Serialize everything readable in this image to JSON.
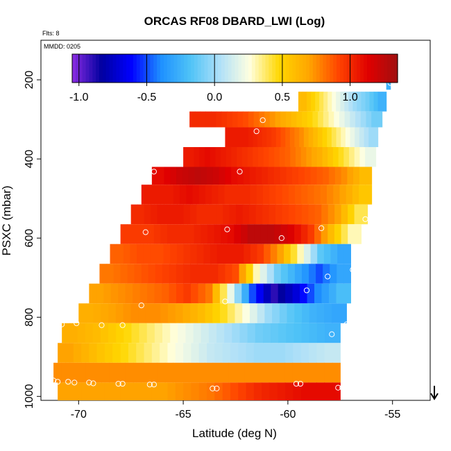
{
  "chart_data": {
    "type": "heatmap",
    "title": "ORCAS RF08 DBARD_LWI (Log)",
    "flts_label": "Flts: 8",
    "mmdd_label": "MMDD: 0205",
    "xlabel": "Latitude (deg N)",
    "ylabel": "PSXC (mbar)",
    "xlim": [
      -71.8,
      -53.2
    ],
    "ylim": [
      1010,
      100
    ],
    "x_ticks": [
      -70,
      -65,
      -60,
      -55
    ],
    "x_tick_labels": [
      "-70",
      "-65",
      "-60",
      "-55"
    ],
    "y_ticks": [
      200,
      400,
      600,
      800,
      1000
    ],
    "y_tick_labels": [
      "200",
      "400",
      "600",
      "800",
      "1000"
    ],
    "colorbar": {
      "range": [
        -1.05,
        1.35
      ],
      "ticks": [
        -1.0,
        -0.5,
        0.0,
        0.5,
        1.0
      ],
      "tick_labels": [
        "-1.0",
        "-0.5",
        "0.0",
        "0.5",
        "1.0"
      ],
      "colors": [
        "#8b2be2",
        "#0000a0",
        "#0000ff",
        "#1e90ff",
        "#4fc3f7",
        "#b0e0f8",
        "#ffffe0",
        "#ffd700",
        "#ffa500",
        "#ff4500",
        "#e00000",
        "#a01010"
      ]
    },
    "rows": [
      {
        "p_top": 180,
        "p_bot": 225,
        "x0": -55.3,
        "x1": -55.1,
        "values": [
          -0.25
        ]
      },
      {
        "p_top": 230,
        "p_bot": 280,
        "x0": -59.5,
        "x1": -55.3,
        "values": [
          0.6,
          0.45,
          0.3,
          0.15,
          0.0,
          -0.1,
          -0.25
        ]
      },
      {
        "p_top": 280,
        "p_bot": 320,
        "x0": -64.7,
        "x1": -55.5,
        "values": [
          1.0,
          1.0,
          0.95,
          0.9,
          0.8,
          0.7,
          0.6,
          0.5,
          0.35,
          0.2,
          0.05,
          -0.1
        ]
      },
      {
        "p_top": 320,
        "p_bot": 370,
        "x0": -63.0,
        "x1": -55.7,
        "values": [
          1.05,
          1.05,
          1.0,
          0.95,
          0.85,
          0.75,
          0.6,
          0.45,
          0.3,
          0.15,
          0.0
        ]
      },
      {
        "p_top": 370,
        "p_bot": 420,
        "x0": -65.0,
        "x1": -55.8,
        "values": [
          1.05,
          1.1,
          1.05,
          1.0,
          0.95,
          0.9,
          0.85,
          0.75,
          0.65,
          0.5,
          0.35,
          0.2
        ]
      },
      {
        "p_top": 420,
        "p_bot": 465,
        "x0": -66.5,
        "x1": -56.0,
        "values": [
          1.1,
          1.2,
          1.25,
          1.2,
          1.1,
          1.05,
          1.0,
          0.95,
          0.9,
          0.85,
          0.75,
          0.6
        ]
      },
      {
        "p_top": 465,
        "p_bot": 515,
        "x0": -67.0,
        "x1": -56.0,
        "values": [
          1.05,
          1.05,
          1.1,
          1.05,
          1.0,
          1.0,
          0.95,
          0.9,
          0.85,
          0.8,
          0.7,
          0.55
        ]
      },
      {
        "p_top": 515,
        "p_bot": 565,
        "x0": -67.5,
        "x1": -56.2,
        "values": [
          1.0,
          1.05,
          1.05,
          1.0,
          1.0,
          1.05,
          1.0,
          0.95,
          0.9,
          0.85,
          0.7,
          0.4
        ]
      },
      {
        "p_top": 565,
        "p_bot": 615,
        "x0": -68.0,
        "x1": -56.5,
        "values": [
          0.95,
          0.95,
          1.0,
          1.0,
          1.05,
          1.1,
          1.25,
          1.25,
          1.15,
          0.95,
          0.6,
          0.3
        ]
      },
      {
        "p_top": 615,
        "p_bot": 665,
        "x0": -68.5,
        "x1": -57.0,
        "values": [
          0.85,
          0.9,
          0.9,
          0.95,
          1.0,
          1.05,
          1.05,
          0.95,
          0.7,
          0.3,
          -0.15,
          -0.3
        ]
      },
      {
        "p_top": 665,
        "p_bot": 715,
        "x0": -69.0,
        "x1": -57.0,
        "values": [
          0.8,
          0.85,
          0.9,
          0.95,
          1.0,
          1.0,
          0.9,
          0.3,
          -0.1,
          -0.3,
          -0.5,
          -0.3
        ]
      },
      {
        "p_top": 715,
        "p_bot": 765,
        "x0": -69.5,
        "x1": -57.0,
        "values": [
          0.7,
          0.75,
          0.8,
          0.85,
          0.95,
          0.8,
          0.2,
          -0.5,
          -0.9,
          -0.7,
          -0.4,
          -0.2
        ]
      },
      {
        "p_top": 765,
        "p_bot": 815,
        "x0": -70.0,
        "x1": -57.2,
        "values": [
          0.65,
          0.7,
          0.75,
          0.75,
          0.7,
          0.6,
          0.45,
          0.25,
          0.0,
          -0.15,
          -0.25,
          -0.3
        ]
      },
      {
        "p_top": 815,
        "p_bot": 865,
        "x0": -70.8,
        "x1": -57.5,
        "values": [
          0.65,
          0.6,
          0.5,
          0.4,
          0.3,
          0.2,
          0.1,
          0.0,
          -0.1,
          -0.15,
          -0.2,
          -0.25
        ]
      },
      {
        "p_top": 865,
        "p_bot": 915,
        "x0": -71.0,
        "x1": -57.5,
        "values": [
          0.7,
          0.6,
          0.5,
          0.4,
          0.3,
          0.2,
          0.1,
          0.05,
          0.0,
          0.0,
          0.05,
          0.1
        ]
      },
      {
        "p_top": 915,
        "p_bot": 965,
        "x0": -71.2,
        "x1": -57.5,
        "values": [
          0.75,
          0.75,
          0.75,
          0.75,
          0.75,
          0.75,
          0.75,
          0.75,
          0.75,
          0.75,
          0.75,
          0.75
        ]
      },
      {
        "p_top": 965,
        "p_bot": 1010,
        "x0": -71.0,
        "x1": -57.5,
        "values": [
          0.7,
          0.7,
          0.7,
          0.7,
          0.7,
          0.75,
          0.8,
          0.9,
          1.0,
          1.05,
          1.1,
          1.1
        ]
      }
    ],
    "markers": [
      {
        "lat": -55.1,
        "p": 208
      },
      {
        "lat": -61.2,
        "p": 302
      },
      {
        "lat": -61.5,
        "p": 330
      },
      {
        "lat": -66.4,
        "p": 432
      },
      {
        "lat": -62.3,
        "p": 432
      },
      {
        "lat": -56.3,
        "p": 552
      },
      {
        "lat": -66.8,
        "p": 585
      },
      {
        "lat": -62.9,
        "p": 578
      },
      {
        "lat": -58.4,
        "p": 575
      },
      {
        "lat": -60.3,
        "p": 600
      },
      {
        "lat": -56.9,
        "p": 680
      },
      {
        "lat": -58.1,
        "p": 697
      },
      {
        "lat": -59.1,
        "p": 732
      },
      {
        "lat": -67.0,
        "p": 770
      },
      {
        "lat": -63.0,
        "p": 760
      },
      {
        "lat": -70.8,
        "p": 818
      },
      {
        "lat": -70.1,
        "p": 815
      },
      {
        "lat": -68.9,
        "p": 820
      },
      {
        "lat": -67.9,
        "p": 820
      },
      {
        "lat": -57.2,
        "p": 818
      },
      {
        "lat": -57.9,
        "p": 843
      },
      {
        "lat": -71.2,
        "p": 960
      },
      {
        "lat": -71.0,
        "p": 963
      },
      {
        "lat": -70.5,
        "p": 963
      },
      {
        "lat": -70.2,
        "p": 965
      },
      {
        "lat": -69.5,
        "p": 965
      },
      {
        "lat": -69.3,
        "p": 967
      },
      {
        "lat": -68.1,
        "p": 968
      },
      {
        "lat": -67.9,
        "p": 968
      },
      {
        "lat": -66.6,
        "p": 970
      },
      {
        "lat": -66.4,
        "p": 970
      },
      {
        "lat": -63.6,
        "p": 980
      },
      {
        "lat": -63.4,
        "p": 980
      },
      {
        "lat": -59.6,
        "p": 968
      },
      {
        "lat": -59.4,
        "p": 968
      },
      {
        "lat": -57.6,
        "p": 978
      },
      {
        "lat": -57.4,
        "p": 978
      }
    ],
    "arrow": {
      "lat": -53.0,
      "direction": "down"
    }
  }
}
